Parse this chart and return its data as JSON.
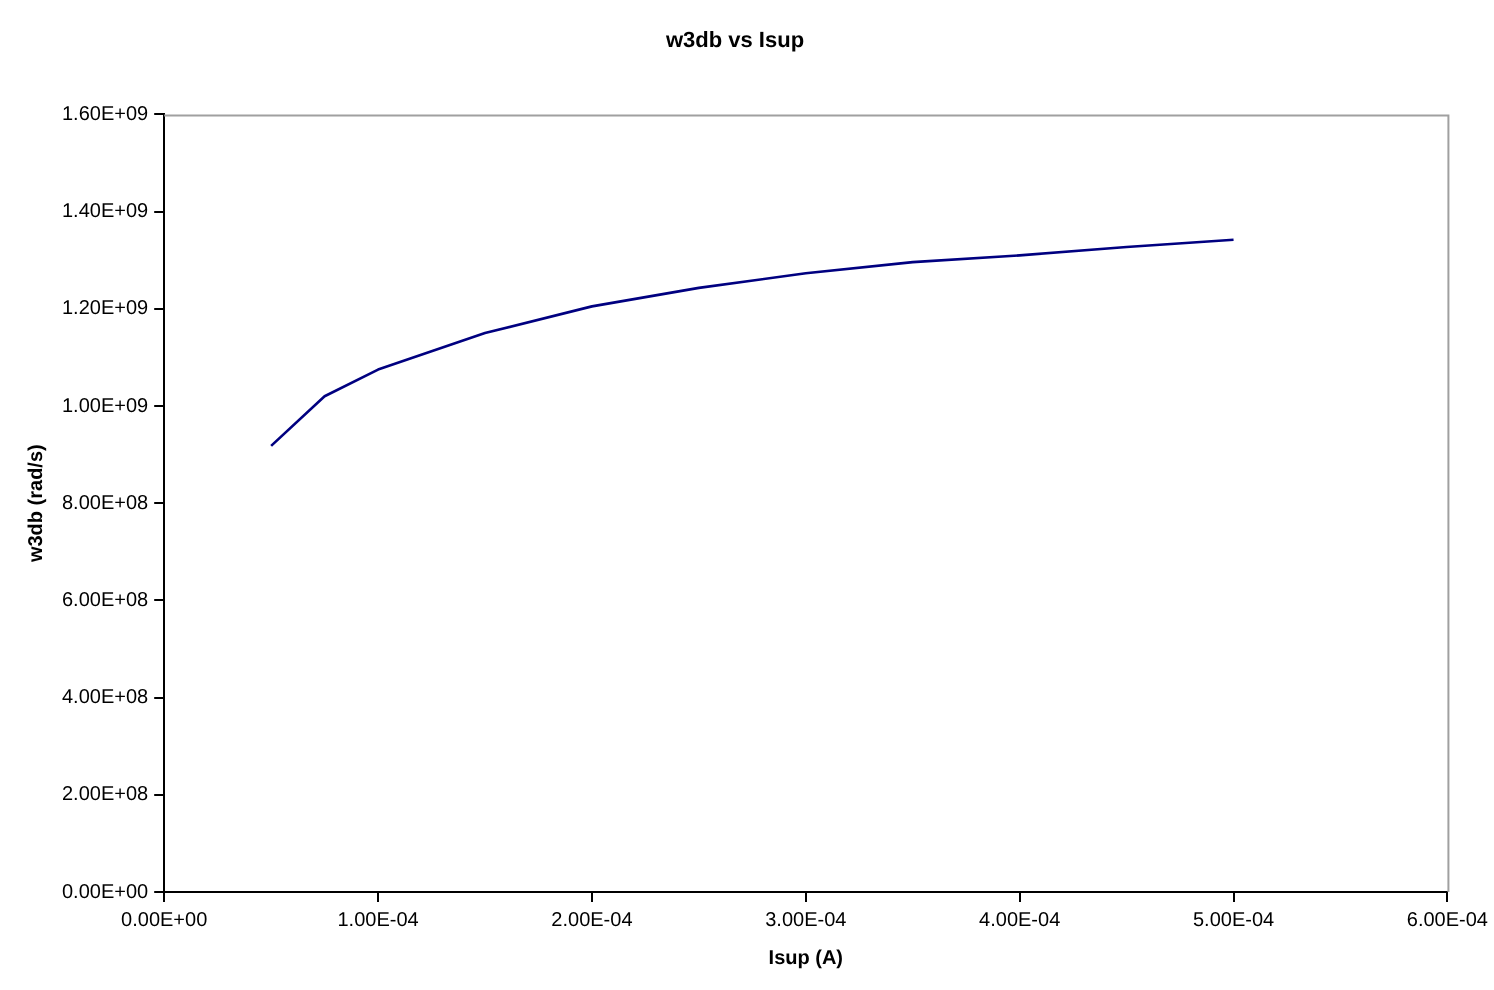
{
  "chart_data": {
    "type": "line",
    "title": "w3db vs Isup",
    "xlabel": "Isup (A)",
    "ylabel": "w3db (rad/s)",
    "x": [
      5e-05,
      7.5e-05,
      0.0001,
      0.00015,
      0.0002,
      0.00025,
      0.0003,
      0.00035,
      0.0004,
      0.00045,
      0.0005
    ],
    "series": [
      {
        "color": "#000080",
        "values": [
          918000000,
          1020000000,
          1075000000,
          1150000000,
          1205000000,
          1243000000,
          1273000000,
          1296000000,
          1310000000,
          1327000000,
          1342000000
        ]
      }
    ],
    "xlim": [
      0,
      0.0006
    ],
    "xticks": [
      {
        "value": 0,
        "label": "0.00E+00"
      },
      {
        "value": 0.0001,
        "label": "1.00E-04"
      },
      {
        "value": 0.0002,
        "label": "2.00E-04"
      },
      {
        "value": 0.0003,
        "label": "3.00E-04"
      },
      {
        "value": 0.0004,
        "label": "4.00E-04"
      },
      {
        "value": 0.0005,
        "label": "5.00E-04"
      },
      {
        "value": 0.0006,
        "label": "6.00E-04"
      }
    ],
    "ylim": [
      0,
      1600000000
    ],
    "yticks": [
      {
        "value": 0,
        "label": "0.00E+00"
      },
      {
        "value": 200000000,
        "label": "2.00E+08"
      },
      {
        "value": 400000000,
        "label": "4.00E+08"
      },
      {
        "value": 600000000,
        "label": "6.00E+08"
      },
      {
        "value": 800000000,
        "label": "8.00E+08"
      },
      {
        "value": 1000000000,
        "label": "1.00E+09"
      },
      {
        "value": 1200000000,
        "label": "1.20E+09"
      },
      {
        "value": 1400000000,
        "label": "1.40E+09"
      },
      {
        "value": 1600000000,
        "label": "1.60E+09"
      }
    ],
    "grid": false,
    "legend": false,
    "marker": "none",
    "line_style": "solid"
  }
}
